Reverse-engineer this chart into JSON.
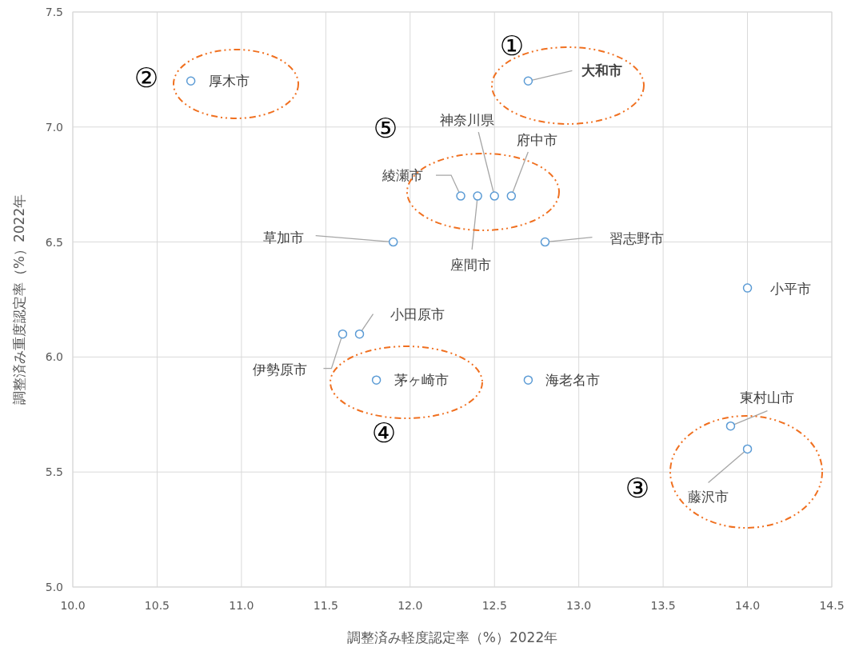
{
  "chart_data": {
    "type": "scatter",
    "xlabel": "調整済み軽度認定率（%）2022年",
    "ylabel": "調整済み重度認定率（%）2022年",
    "x": [
      10.7,
      12.7,
      12.3,
      12.4,
      12.5,
      12.6,
      11.9,
      12.8,
      14.0,
      11.6,
      11.7,
      11.8,
      12.7,
      13.9,
      14.0
    ],
    "values": [
      7.2,
      7.2,
      6.7,
      6.7,
      6.7,
      6.7,
      6.5,
      6.5,
      6.3,
      6.1,
      6.1,
      5.9,
      5.9,
      5.7,
      5.6
    ],
    "value_labels": [
      "厚木市",
      "大和市",
      "綾瀬市",
      "座間市",
      "神奈川県",
      "府中市",
      "草加市",
      "習志野市",
      "小平市",
      "伊勢原市",
      "小田原市",
      "茅ヶ崎市",
      "海老名市",
      "東村山市",
      "藤沢市"
    ],
    "color": "#5b9bd5",
    "marker": "circle",
    "xlim": [
      10.0,
      14.5
    ],
    "xticks": [
      {
        "value": 10,
        "label": "10.0"
      },
      {
        "value": 10.5,
        "label": "10.5"
      },
      {
        "value": 11,
        "label": "11.0"
      },
      {
        "value": 11.5,
        "label": "11.5"
      },
      {
        "value": 12,
        "label": "12.0"
      },
      {
        "value": 12.5,
        "label": "12.5"
      },
      {
        "value": 13,
        "label": "13.0"
      },
      {
        "value": 13.5,
        "label": "13.5"
      },
      {
        "value": 14,
        "label": "14.0"
      },
      {
        "value": 14.5,
        "label": "14.5"
      }
    ],
    "ylim": [
      5.0,
      7.5
    ],
    "yticks": [
      {
        "value": 5,
        "label": "5.0"
      },
      {
        "value": 5.5,
        "label": "5.5"
      },
      {
        "value": 6,
        "label": "6.0"
      },
      {
        "value": 6.5,
        "label": "6.5"
      },
      {
        "value": 7,
        "label": "7.0"
      },
      {
        "value": 7.5,
        "label": "7.5"
      }
    ],
    "grid": true,
    "annotations": [
      "①",
      "②",
      "③",
      "④",
      "⑤"
    ]
  }
}
